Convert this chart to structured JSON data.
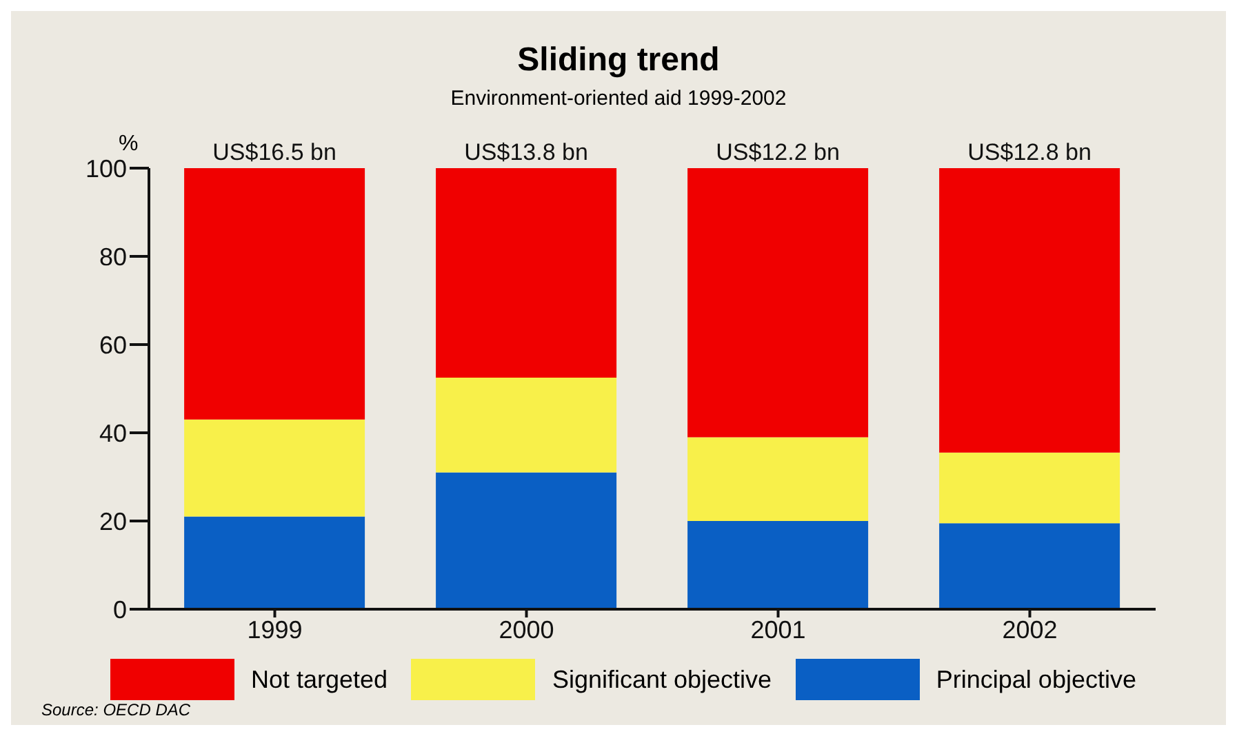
{
  "chart_data": {
    "type": "bar",
    "title": "Sliding trend",
    "subtitle": "Environment-oriented aid 1999-2002",
    "ylabel": "%",
    "categories": [
      "1999",
      "2000",
      "2001",
      "2002"
    ],
    "stacked": true,
    "series": [
      {
        "name": "Principal objective",
        "color": "#0a5fc4",
        "values": [
          21,
          31,
          20,
          19.5
        ]
      },
      {
        "name": "Significant objective",
        "color": "#f8f04a",
        "values": [
          22,
          21.5,
          19,
          16
        ]
      },
      {
        "name": "Not targeted",
        "color": "#f00000",
        "values": [
          57,
          47.5,
          61,
          64.5
        ]
      }
    ],
    "totals": [
      "US$16.5 bn",
      "US$13.8 bn",
      "US$12.2 bn",
      "US$12.8 bn"
    ],
    "ylim": [
      0,
      100
    ],
    "yticks": [
      0,
      20,
      40,
      60,
      80,
      100
    ],
    "grid": false,
    "legend": "bottom",
    "annotations": [
      "Source: OECD DAC"
    ]
  }
}
